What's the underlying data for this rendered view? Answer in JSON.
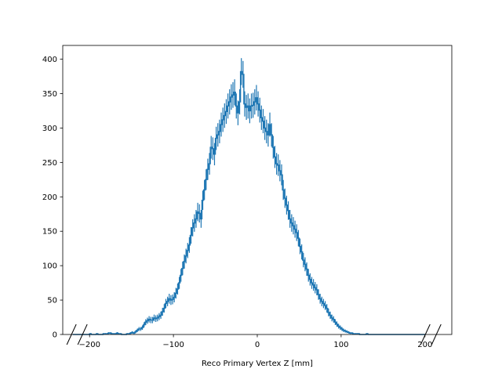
{
  "chart_data": {
    "type": "histogram",
    "xlabel": "Reco Primary Vertex Z [mm]",
    "ylabel": "",
    "xlim": [
      -232,
      232
    ],
    "ylim": [
      0,
      420
    ],
    "xticks": [
      -200,
      -100,
      0,
      100,
      200
    ],
    "xtick_labels": [
      "−200",
      "−100",
      "0",
      "100",
      "200"
    ],
    "yticks": [
      0,
      50,
      100,
      150,
      200,
      250,
      300,
      350,
      400
    ],
    "ytick_labels": [
      "0",
      "50",
      "100",
      "150",
      "200",
      "250",
      "300",
      "350",
      "400"
    ],
    "axis_break_marks": "both ends of x-axis",
    "grid": false,
    "color": "#1f77b4",
    "bin_width": 2,
    "bins_start": -220,
    "counts": [
      0,
      0,
      0,
      0,
      0,
      0,
      0,
      0,
      0,
      0,
      1,
      0,
      0,
      0,
      1,
      0,
      0,
      0,
      1,
      1,
      1,
      2,
      2,
      1,
      1,
      1,
      2,
      1,
      1,
      0,
      0,
      0,
      1,
      1,
      2,
      3,
      2,
      4,
      6,
      8,
      8,
      10,
      14,
      18,
      20,
      22,
      21,
      21,
      24,
      23,
      24,
      26,
      28,
      33,
      38,
      45,
      48,
      52,
      50,
      51,
      54,
      60,
      66,
      75,
      86,
      96,
      106,
      114,
      122,
      130,
      144,
      155,
      162,
      168,
      178,
      176,
      168,
      195,
      210,
      225,
      240,
      248,
      272,
      270,
      262,
      285,
      290,
      295,
      305,
      312,
      318,
      324,
      332,
      338,
      345,
      348,
      352,
      332,
      322,
      338,
      382,
      378,
      335,
      330,
      332,
      325,
      332,
      333,
      338,
      344,
      335,
      326,
      315,
      310,
      300,
      295,
      290,
      305,
      290,
      272,
      258,
      248,
      246,
      238,
      232,
      210,
      198,
      188,
      180,
      168,
      162,
      158,
      153,
      148,
      140,
      128,
      120,
      108,
      102,
      95,
      86,
      80,
      75,
      72,
      68,
      65,
      58,
      52,
      48,
      45,
      42,
      38,
      32,
      28,
      24,
      22,
      18,
      15,
      12,
      10,
      8,
      6,
      5,
      4,
      3,
      2,
      2,
      1,
      1,
      1,
      1,
      0,
      0,
      0,
      0,
      1,
      0,
      0,
      0,
      0,
      0,
      0,
      0,
      0,
      0,
      0,
      0,
      0,
      0,
      0,
      0,
      0,
      0,
      0,
      0,
      0,
      0,
      0,
      0,
      0,
      0,
      0,
      0,
      0,
      0,
      0,
      0,
      0,
      0,
      0
    ]
  }
}
